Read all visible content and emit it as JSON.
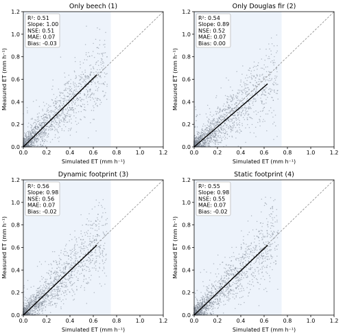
{
  "chart_data": [
    {
      "type": "scatter",
      "title": "Only beech (1)",
      "xlabel": "Simulated ET (mm h⁻¹)",
      "ylabel": "Measured ET (mm h⁻¹)",
      "xlim": [
        0,
        1.2
      ],
      "ylim": [
        0,
        1.2
      ],
      "xticks": [
        "0.0",
        "0.2",
        "0.4",
        "0.6",
        "0.8",
        "1.0",
        "1.2"
      ],
      "yticks": [
        "0.0",
        "0.2",
        "0.4",
        "0.6",
        "0.8",
        "1.0",
        "1.2"
      ],
      "shaded_x_range": [
        0,
        0.75
      ],
      "stats": [
        "R²: 0.51",
        "Slope: 1.00",
        "NSE: 0.51",
        "MAE: 0.07",
        "Bias: -0.03"
      ],
      "fit_line": {
        "x": [
          0,
          0.63
        ],
        "y": [
          0,
          0.64
        ]
      },
      "one_to_one_line": true
    },
    {
      "type": "scatter",
      "title": "Only Douglas fir (2)",
      "xlabel": "Simulated ET (mm h⁻¹)",
      "ylabel": "Measured ET (mm h⁻¹)",
      "xlim": [
        0,
        1.2
      ],
      "ylim": [
        0,
        1.2
      ],
      "xticks": [
        "0.0",
        "0.2",
        "0.4",
        "0.6",
        "0.8",
        "1.0",
        "1.2"
      ],
      "yticks": [
        "0.0",
        "0.2",
        "0.4",
        "0.6",
        "0.8",
        "1.0",
        "1.2"
      ],
      "shaded_x_range": [
        0,
        0.75
      ],
      "stats": [
        "R²: 0.54",
        "Slope: 0.89",
        "NSE: 0.52",
        "MAE: 0.07",
        "Bias: 0.00"
      ],
      "fit_line": {
        "x": [
          0,
          0.63
        ],
        "y": [
          0,
          0.56
        ]
      },
      "one_to_one_line": true
    },
    {
      "type": "scatter",
      "title": "Dynamic footprint (3)",
      "xlabel": "Simulated ET (mm h⁻¹)",
      "ylabel": "Measured ET (mm h⁻¹)",
      "xlim": [
        0,
        1.2
      ],
      "ylim": [
        0,
        1.2
      ],
      "xticks": [
        "0.0",
        "0.2",
        "0.4",
        "0.6",
        "0.8",
        "1.0",
        "1.2"
      ],
      "yticks": [
        "0.0",
        "0.2",
        "0.4",
        "0.6",
        "0.8",
        "1.0",
        "1.2"
      ],
      "shaded_x_range": [
        0,
        0.75
      ],
      "stats": [
        "R²: 0.56",
        "Slope: 0.98",
        "NSE: 0.56",
        "MAE: 0.07",
        "Bias: -0.02"
      ],
      "fit_line": {
        "x": [
          0,
          0.63
        ],
        "y": [
          0,
          0.62
        ]
      },
      "one_to_one_line": true
    },
    {
      "type": "scatter",
      "title": "Static footprint (4)",
      "xlabel": "Simulated ET (mm h⁻¹)",
      "ylabel": "Measured ET (mm h⁻¹)",
      "xlim": [
        0,
        1.2
      ],
      "ylim": [
        0,
        1.2
      ],
      "xticks": [
        "0.0",
        "0.2",
        "0.4",
        "0.6",
        "0.8",
        "1.0",
        "1.2"
      ],
      "yticks": [
        "0.0",
        "0.2",
        "0.4",
        "0.6",
        "0.8",
        "1.0",
        "1.2"
      ],
      "shaded_x_range": [
        0,
        0.75
      ],
      "stats": [
        "R²: 0.55",
        "Slope: 0.98",
        "NSE: 0.55",
        "MAE: 0.07",
        "Bias: -0.02"
      ],
      "fit_line": {
        "x": [
          0,
          0.63
        ],
        "y": [
          0,
          0.62
        ]
      },
      "one_to_one_line": true
    }
  ],
  "colors": {
    "points": "#7d8793",
    "shade": "#edf3fb",
    "fit": "#000000",
    "one_to_one": "#888888",
    "frame": "#000000",
    "stat_box_border": "#bbbbbb"
  }
}
